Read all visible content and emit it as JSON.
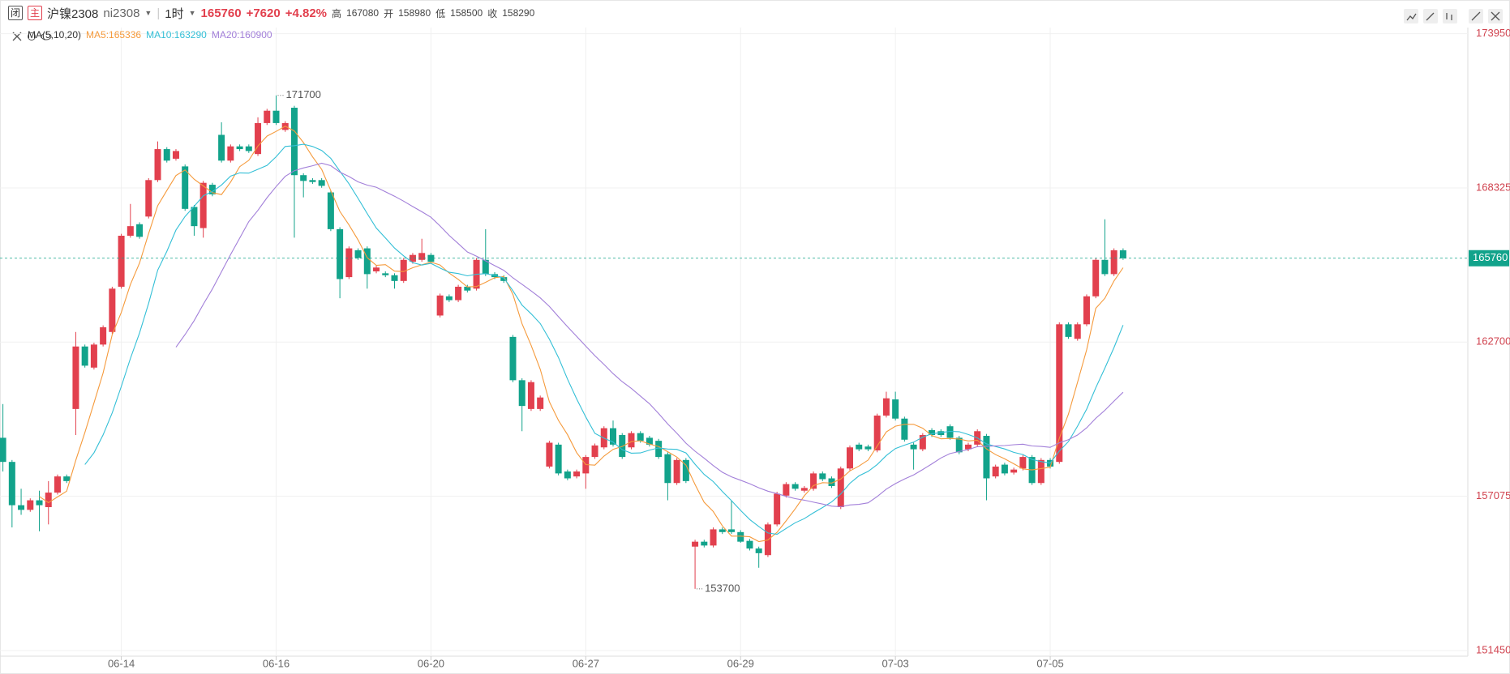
{
  "header": {
    "badge1": "闭",
    "badge2": "主",
    "symbol": "沪镍2308",
    "code": "ni2308",
    "period": "1时",
    "price": 165760,
    "change": "+7620",
    "change_pct": "+4.82%",
    "high_label": "高",
    "high": 167080,
    "open_label": "开",
    "open": 158980,
    "low_label": "低",
    "low": 158500,
    "close_label": "收",
    "close": 158290
  },
  "chart_data": {
    "type": "candlestick",
    "categories": [
      null,
      null,
      null,
      null,
      null,
      null,
      null,
      null,
      null,
      null,
      null,
      null,
      null,
      "06-14",
      null,
      null,
      null,
      null,
      null,
      null,
      null,
      null,
      null,
      null,
      null,
      null,
      null,
      null,
      null,
      null,
      "06-16",
      null,
      null,
      null,
      null,
      null,
      null,
      null,
      null,
      null,
      null,
      null,
      null,
      null,
      null,
      null,
      null,
      "06-20",
      null,
      null,
      null,
      null,
      null,
      null,
      null,
      null,
      null,
      null,
      null,
      null,
      null,
      null,
      null,
      null,
      "06-27",
      null,
      null,
      null,
      null,
      null,
      null,
      null,
      null,
      null,
      null,
      null,
      null,
      null,
      null,
      null,
      null,
      "06-29",
      null,
      null,
      null,
      null,
      null,
      null,
      null,
      null,
      null,
      null,
      null,
      null,
      null,
      null,
      null,
      null,
      "07-03",
      null,
      null,
      null,
      null,
      null,
      null,
      null,
      null,
      null,
      null,
      null,
      null,
      null,
      null,
      null,
      null,
      "07-05",
      null,
      null,
      null,
      null,
      null,
      null,
      null,
      null
    ],
    "open": [
      159210,
      158330,
      156750,
      156580,
      156930,
      156680,
      157210,
      157800,
      160260,
      162540,
      161770,
      162610,
      163070,
      164720,
      166580,
      167000,
      167280,
      168610,
      169740,
      169390,
      169110,
      167630,
      166860,
      168440,
      170260,
      169320,
      169840,
      169840,
      169560,
      170690,
      171140,
      170440,
      171250,
      168790,
      168610,
      168610,
      168160,
      166820,
      165070,
      166050,
      166120,
      165280,
      165210,
      165140,
      164930,
      165630,
      165700,
      165880,
      163670,
      164370,
      164230,
      164720,
      164650,
      165700,
      165180,
      165070,
      162890,
      161310,
      160260,
      160260,
      158160,
      158960,
      157980,
      157800,
      157910,
      158510,
      158860,
      159560,
      159310,
      158860,
      159380,
      159210,
      159100,
      158610,
      157560,
      158400,
      155240,
      155420,
      155280,
      155870,
      155870,
      155770,
      155450,
      155170,
      154930,
      156050,
      157100,
      157520,
      157280,
      157350,
      157910,
      157730,
      156680,
      158090,
      158960,
      158890,
      158750,
      160020,
      160610,
      159910,
      158960,
      158790,
      159490,
      159450,
      159630,
      159210,
      158790,
      158960,
      159280,
      157800,
      158230,
      157940,
      158090,
      158510,
      157560,
      158400,
      158330,
      163350,
      162820,
      163350,
      164370,
      165700,
      165180,
      166050
    ],
    "high": [
      160440,
      158400,
      157350,
      157000,
      157280,
      157630,
      157870,
      157870,
      163070,
      162610,
      162680,
      163310,
      164720,
      166650,
      167740,
      167070,
      168680,
      170020,
      169810,
      169740,
      169180,
      167700,
      168580,
      168510,
      170720,
      169910,
      169910,
      169910,
      170900,
      171210,
      171700,
      170760,
      171320,
      168860,
      168680,
      168680,
      168230,
      166890,
      166190,
      166120,
      166190,
      165490,
      165280,
      165210,
      165770,
      165950,
      166470,
      165950,
      164470,
      164440,
      164790,
      164790,
      165770,
      166820,
      165250,
      165140,
      162960,
      161380,
      161310,
      160750,
      159100,
      159030,
      158050,
      158050,
      158580,
      159000,
      159630,
      159840,
      159380,
      159450,
      159450,
      159280,
      159170,
      158680,
      158470,
      158470,
      155490,
      155490,
      155940,
      155940,
      156930,
      155840,
      155520,
      155240,
      156120,
      157240,
      157590,
      157590,
      157450,
      157980,
      157980,
      157800,
      158160,
      158930,
      159030,
      158960,
      160090,
      160890,
      160890,
      159980,
      159030,
      159380,
      159560,
      159520,
      159700,
      159280,
      159030,
      159520,
      159350,
      158230,
      158300,
      158120,
      158580,
      158580,
      158470,
      158470,
      163420,
      163420,
      163420,
      164440,
      165770,
      167180,
      166120,
      166120
    ],
    "low": [
      157980,
      155940,
      156400,
      156510,
      155800,
      156050,
      157140,
      157560,
      159310,
      161770,
      161700,
      162540,
      163000,
      164650,
      166510,
      166470,
      167210,
      168540,
      169250,
      169320,
      167490,
      166580,
      166510,
      168020,
      169250,
      169250,
      169670,
      169600,
      169490,
      170620,
      170620,
      170370,
      166510,
      167980,
      168470,
      168330,
      166750,
      164300,
      165000,
      165700,
      164650,
      165210,
      165070,
      164650,
      164860,
      165560,
      165630,
      165560,
      163600,
      164160,
      164160,
      164510,
      164580,
      165110,
      165000,
      164860,
      161240,
      159450,
      160190,
      160190,
      158090,
      157840,
      157660,
      157730,
      157350,
      158440,
      158790,
      158890,
      158440,
      158790,
      159030,
      158890,
      158440,
      156930,
      157490,
      157560,
      153700,
      155210,
      155210,
      155700,
      155700,
      155380,
      155100,
      154470,
      154860,
      155980,
      157030,
      157280,
      157210,
      157280,
      157630,
      157380,
      156610,
      158020,
      158720,
      158720,
      158680,
      159950,
      159840,
      159070,
      158050,
      158720,
      159240,
      159240,
      159140,
      158610,
      158720,
      158890,
      156930,
      157730,
      157840,
      157870,
      158020,
      157490,
      157490,
      158090,
      158260,
      162820,
      162750,
      163280,
      164300,
      165110,
      165110,
      165700
    ],
    "close": [
      158330,
      156750,
      156580,
      156930,
      156750,
      157210,
      157800,
      157630,
      162540,
      161840,
      162610,
      163240,
      164650,
      166580,
      166930,
      166540,
      168610,
      169740,
      169320,
      169670,
      167560,
      166930,
      168510,
      168090,
      169320,
      169840,
      169740,
      169670,
      170690,
      171140,
      170690,
      170690,
      168790,
      168580,
      168540,
      168400,
      166820,
      165000,
      166120,
      165770,
      165180,
      165420,
      165140,
      164930,
      165700,
      165880,
      165950,
      165630,
      164400,
      164230,
      164720,
      164580,
      165700,
      165180,
      165070,
      164930,
      161310,
      160370,
      161240,
      160680,
      159030,
      157910,
      157730,
      157980,
      158510,
      158930,
      159560,
      158960,
      158510,
      159380,
      159100,
      158960,
      158510,
      157560,
      158400,
      157630,
      155420,
      155280,
      155870,
      155770,
      155770,
      155420,
      155170,
      155000,
      156050,
      157170,
      157520,
      157350,
      157380,
      157910,
      157700,
      157450,
      158090,
      158860,
      158790,
      158790,
      160020,
      160650,
      159910,
      159140,
      158790,
      159310,
      159310,
      159310,
      159210,
      158680,
      158960,
      159450,
      157730,
      158160,
      157910,
      158050,
      158510,
      157560,
      158400,
      158160,
      163350,
      162890,
      163350,
      164370,
      165700,
      165180,
      166050,
      165760
    ],
    "ylim": [
      151450,
      173950
    ],
    "yticks": [
      151450,
      157075,
      162700,
      168325,
      173950
    ],
    "grid": true,
    "up_color": "#e2404e",
    "down_color": "#12a38b",
    "last_price": 165760,
    "max_label": 171700,
    "min_label": 153700,
    "indicator": {
      "label": "MA(5,10,20)",
      "lines": [
        {
          "name": "MA5:165336",
          "period": 5,
          "color": "#f59a3c"
        },
        {
          "name": "MA10:163290",
          "period": 10,
          "color": "#33bfd6"
        },
        {
          "name": "MA20:160900",
          "period": 20,
          "color": "#a27fd9"
        }
      ]
    }
  }
}
